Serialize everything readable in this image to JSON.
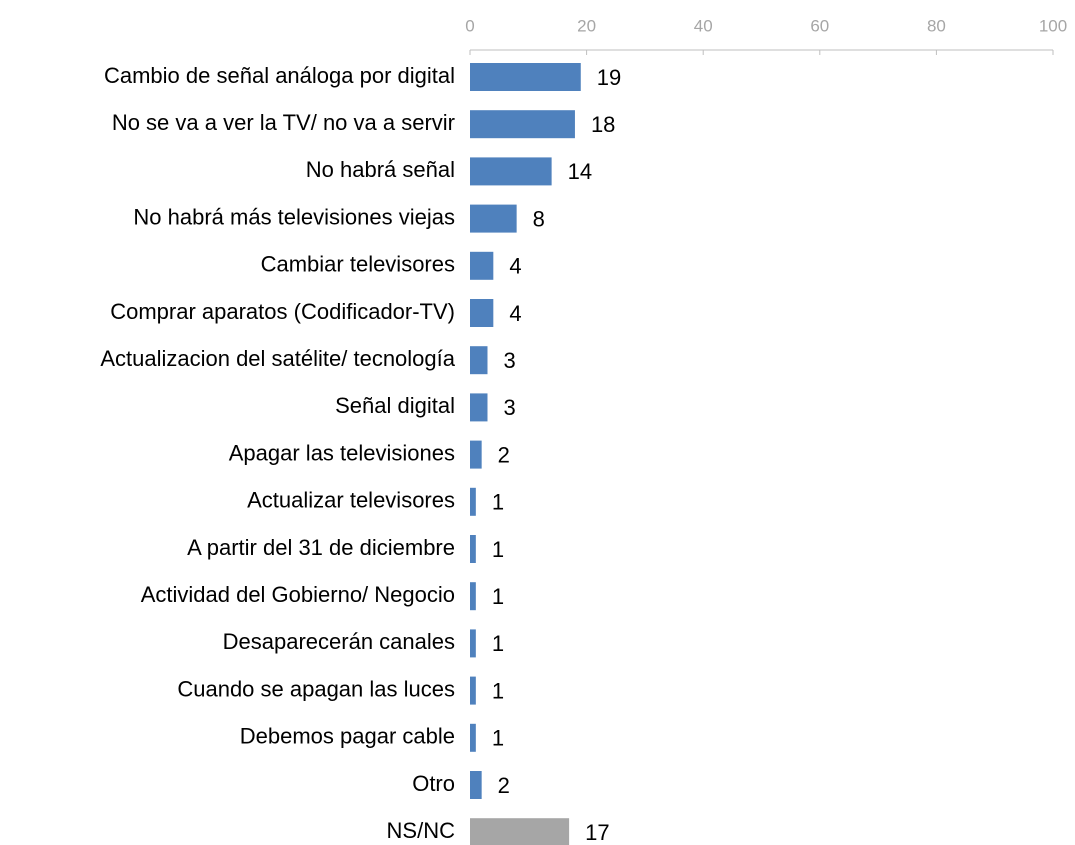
{
  "chart_data": {
    "type": "bar",
    "orientation": "horizontal",
    "axis_position": "top",
    "categories": [
      "Cambio de señal análoga por digital",
      "No se va a ver la TV/ no va a servir",
      "No habrá señal",
      "No habrá más televisiones viejas",
      "Cambiar televisores",
      "Comprar aparatos (Codificador-TV)",
      "Actualizacion del satélite/ tecnología",
      "Señal digital",
      "Apagar las televisiones",
      "Actualizar televisores",
      "A partir del 31 de diciembre",
      "Actividad del Gobierno/ Negocio",
      "Desaparecerán canales",
      "Cuando se apagan las luces",
      "Debemos pagar cable",
      "Otro",
      "NS/NC"
    ],
    "values": [
      19,
      18,
      14,
      8,
      4,
      4,
      3,
      3,
      2,
      1,
      1,
      1,
      1,
      1,
      1,
      2,
      17
    ],
    "colors": [
      "#4f81bd",
      "#4f81bd",
      "#4f81bd",
      "#4f81bd",
      "#4f81bd",
      "#4f81bd",
      "#4f81bd",
      "#4f81bd",
      "#4f81bd",
      "#4f81bd",
      "#4f81bd",
      "#4f81bd",
      "#4f81bd",
      "#4f81bd",
      "#4f81bd",
      "#4f81bd",
      "#a6a6a6"
    ],
    "xlim": [
      0,
      100
    ],
    "xticks": [
      0,
      20,
      40,
      60,
      80,
      100
    ],
    "grid": false
  }
}
